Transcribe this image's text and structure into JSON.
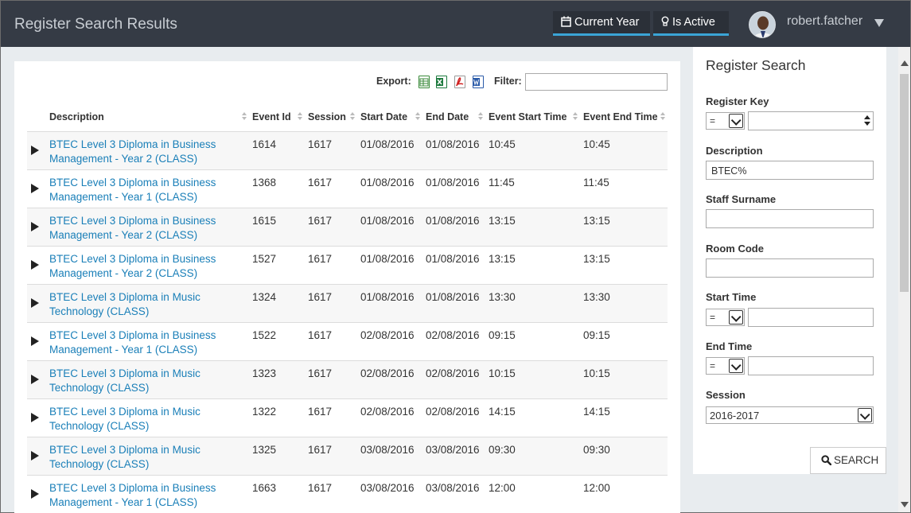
{
  "header": {
    "title": "Register Search Results",
    "current_year_label": "Current Year",
    "is_active_label": "Is Active",
    "username": "robert.fatcher"
  },
  "results": {
    "export_label": "Export:",
    "filter_label": "Filter:",
    "filter_value": "",
    "columns": [
      "Description",
      "Event Id",
      "Session",
      "Start Date",
      "End Date",
      "Event Start Time",
      "Event End Time"
    ],
    "rows": [
      {
        "desc1": "BTEC Level 3 Diploma in Business",
        "desc2": "Management - Year 2 (CLASS)",
        "event_id": "1614",
        "session": "1617",
        "start_date": "01/08/2016",
        "end_date": "01/08/2016",
        "start_time": "10:45",
        "end_time": "10:45"
      },
      {
        "desc1": "BTEC Level 3 Diploma in Business",
        "desc2": "Management - Year 1 (CLASS)",
        "event_id": "1368",
        "session": "1617",
        "start_date": "01/08/2016",
        "end_date": "01/08/2016",
        "start_time": "11:45",
        "end_time": "11:45"
      },
      {
        "desc1": "BTEC Level 3 Diploma in Business",
        "desc2": "Management - Year 2 (CLASS)",
        "event_id": "1615",
        "session": "1617",
        "start_date": "01/08/2016",
        "end_date": "01/08/2016",
        "start_time": "13:15",
        "end_time": "13:15"
      },
      {
        "desc1": "BTEC Level 3 Diploma in Business",
        "desc2": "Management - Year 2 (CLASS)",
        "event_id": "1527",
        "session": "1617",
        "start_date": "01/08/2016",
        "end_date": "01/08/2016",
        "start_time": "13:15",
        "end_time": "13:15"
      },
      {
        "desc1": "BTEC Level 3 Diploma in Music",
        "desc2": "Technology (CLASS)",
        "event_id": "1324",
        "session": "1617",
        "start_date": "01/08/2016",
        "end_date": "01/08/2016",
        "start_time": "13:30",
        "end_time": "13:30"
      },
      {
        "desc1": "BTEC Level 3 Diploma in Business",
        "desc2": "Management - Year 1 (CLASS)",
        "event_id": "1522",
        "session": "1617",
        "start_date": "02/08/2016",
        "end_date": "02/08/2016",
        "start_time": "09:15",
        "end_time": "09:15"
      },
      {
        "desc1": "BTEC Level 3 Diploma in Music",
        "desc2": "Technology (CLASS)",
        "event_id": "1323",
        "session": "1617",
        "start_date": "02/08/2016",
        "end_date": "02/08/2016",
        "start_time": "10:15",
        "end_time": "10:15"
      },
      {
        "desc1": "BTEC Level 3 Diploma in Music",
        "desc2": "Technology (CLASS)",
        "event_id": "1322",
        "session": "1617",
        "start_date": "02/08/2016",
        "end_date": "02/08/2016",
        "start_time": "14:15",
        "end_time": "14:15"
      },
      {
        "desc1": "BTEC Level 3 Diploma in Music",
        "desc2": "Technology (CLASS)",
        "event_id": "1325",
        "session": "1617",
        "start_date": "03/08/2016",
        "end_date": "03/08/2016",
        "start_time": "09:30",
        "end_time": "09:30"
      },
      {
        "desc1": "BTEC Level 3 Diploma in Business",
        "desc2": "Management - Year 1 (CLASS)",
        "event_id": "1663",
        "session": "1617",
        "start_date": "03/08/2016",
        "end_date": "03/08/2016",
        "start_time": "12:00",
        "end_time": "12:00"
      }
    ]
  },
  "search": {
    "title": "Register Search",
    "register_key_label": "Register Key",
    "register_key_op": "=",
    "register_key_value": "",
    "description_label": "Description",
    "description_value": "BTEC%",
    "staff_surname_label": "Staff Surname",
    "staff_surname_value": "",
    "room_code_label": "Room Code",
    "room_code_value": "",
    "start_time_label": "Start Time",
    "start_time_op": "=",
    "start_time_value": "",
    "end_time_label": "End Time",
    "end_time_op": "=",
    "end_time_value": "",
    "session_label": "Session",
    "session_value": "2016-2017",
    "search_button": "SEARCH"
  },
  "icons": {
    "calendar": "calendar-icon",
    "lightbulb": "lightbulb-icon",
    "search": "search-icon",
    "excel": "excel-icon",
    "pdf": "pdf-icon",
    "word": "word-icon"
  },
  "colors": {
    "topbar": "#353b45",
    "accent": "#3aa4d6",
    "link": "#1a7fb8"
  }
}
